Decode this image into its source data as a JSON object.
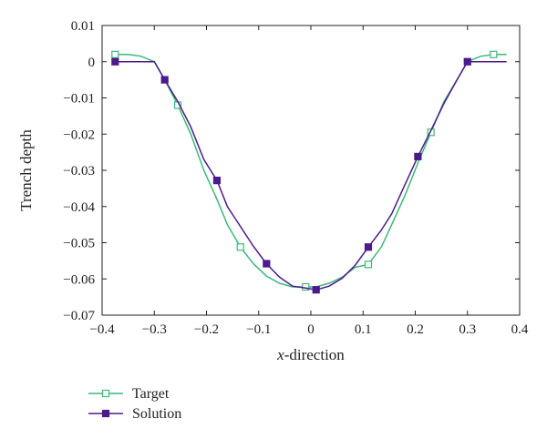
{
  "chart_data": {
    "type": "line",
    "title": "",
    "xlabel_italic": "x",
    "xlabel_rest": "-direction",
    "ylabel": "Trench depth",
    "xlim": [
      -0.4,
      0.4
    ],
    "ylim": [
      -0.07,
      0.01
    ],
    "xticks": [
      -0.4,
      -0.3,
      -0.2,
      -0.1,
      0,
      0.1,
      0.2,
      0.3,
      0.4
    ],
    "xtick_labels": [
      "−0.4",
      "−0.3",
      "−0.2",
      "−0.1",
      "0",
      "0.1",
      "0.2",
      "0.3",
      "0.4"
    ],
    "yticks": [
      0.01,
      0,
      -0.01,
      -0.02,
      -0.03,
      -0.04,
      -0.05,
      -0.06,
      -0.07
    ],
    "ytick_labels": [
      "0.01",
      "0",
      "−0.01",
      "−0.02",
      "−0.03",
      "−0.04",
      "−0.05",
      "−0.06",
      "−0.07"
    ],
    "grid": false,
    "legend_position": "below",
    "series": [
      {
        "name": "Target",
        "color": "#3cb878",
        "marker": "open-square",
        "x": [
          -0.375,
          -0.35,
          -0.325,
          -0.3,
          -0.28,
          -0.255,
          -0.23,
          -0.205,
          -0.18,
          -0.16,
          -0.135,
          -0.11,
          -0.085,
          -0.06,
          -0.035,
          -0.01,
          0.01,
          0.035,
          0.06,
          0.085,
          0.11,
          0.135,
          0.155,
          0.18,
          0.205,
          0.23,
          0.255,
          0.28,
          0.3,
          0.325,
          0.35,
          0.375
        ],
        "y": [
          0.002,
          0.002,
          0.0015,
          0.0,
          -0.005,
          -0.012,
          -0.02,
          -0.03,
          -0.038,
          -0.045,
          -0.0512,
          -0.0558,
          -0.0592,
          -0.0612,
          -0.0622,
          -0.0622,
          -0.0622,
          -0.0612,
          -0.0595,
          -0.0568,
          -0.056,
          -0.0512,
          -0.045,
          -0.037,
          -0.028,
          -0.0195,
          -0.011,
          -0.005,
          0.0,
          0.0015,
          0.002,
          0.002
        ],
        "marker_x": [
          -0.375,
          -0.255,
          -0.135,
          -0.01,
          0.11,
          0.23,
          0.35
        ],
        "marker_y": [
          0.002,
          -0.012,
          -0.0512,
          -0.0622,
          -0.056,
          -0.0195,
          0.002
        ]
      },
      {
        "name": "Solution",
        "color": "#4b1b8a",
        "marker": "filled-square",
        "x": [
          -0.375,
          -0.35,
          -0.325,
          -0.3,
          -0.28,
          -0.255,
          -0.23,
          -0.205,
          -0.18,
          -0.16,
          -0.135,
          -0.11,
          -0.085,
          -0.06,
          -0.035,
          -0.01,
          0.01,
          0.035,
          0.06,
          0.085,
          0.11,
          0.135,
          0.155,
          0.18,
          0.205,
          0.23,
          0.255,
          0.28,
          0.3,
          0.325,
          0.35,
          0.375
        ],
        "y": [
          0.0,
          0.0,
          0.0,
          0.0,
          -0.005,
          -0.011,
          -0.018,
          -0.027,
          -0.0328,
          -0.04,
          -0.0455,
          -0.051,
          -0.0558,
          -0.0595,
          -0.062,
          -0.0625,
          -0.063,
          -0.062,
          -0.0598,
          -0.0562,
          -0.0512,
          -0.0465,
          -0.042,
          -0.034,
          -0.0262,
          -0.019,
          -0.0115,
          -0.005,
          0.0,
          0.0,
          0.0,
          0.0
        ],
        "marker_x": [
          -0.375,
          -0.28,
          -0.18,
          -0.085,
          0.01,
          0.11,
          0.205,
          0.3
        ],
        "marker_y": [
          0.0,
          -0.005,
          -0.0328,
          -0.0558,
          -0.063,
          -0.0512,
          -0.0262,
          0.0
        ]
      }
    ]
  }
}
